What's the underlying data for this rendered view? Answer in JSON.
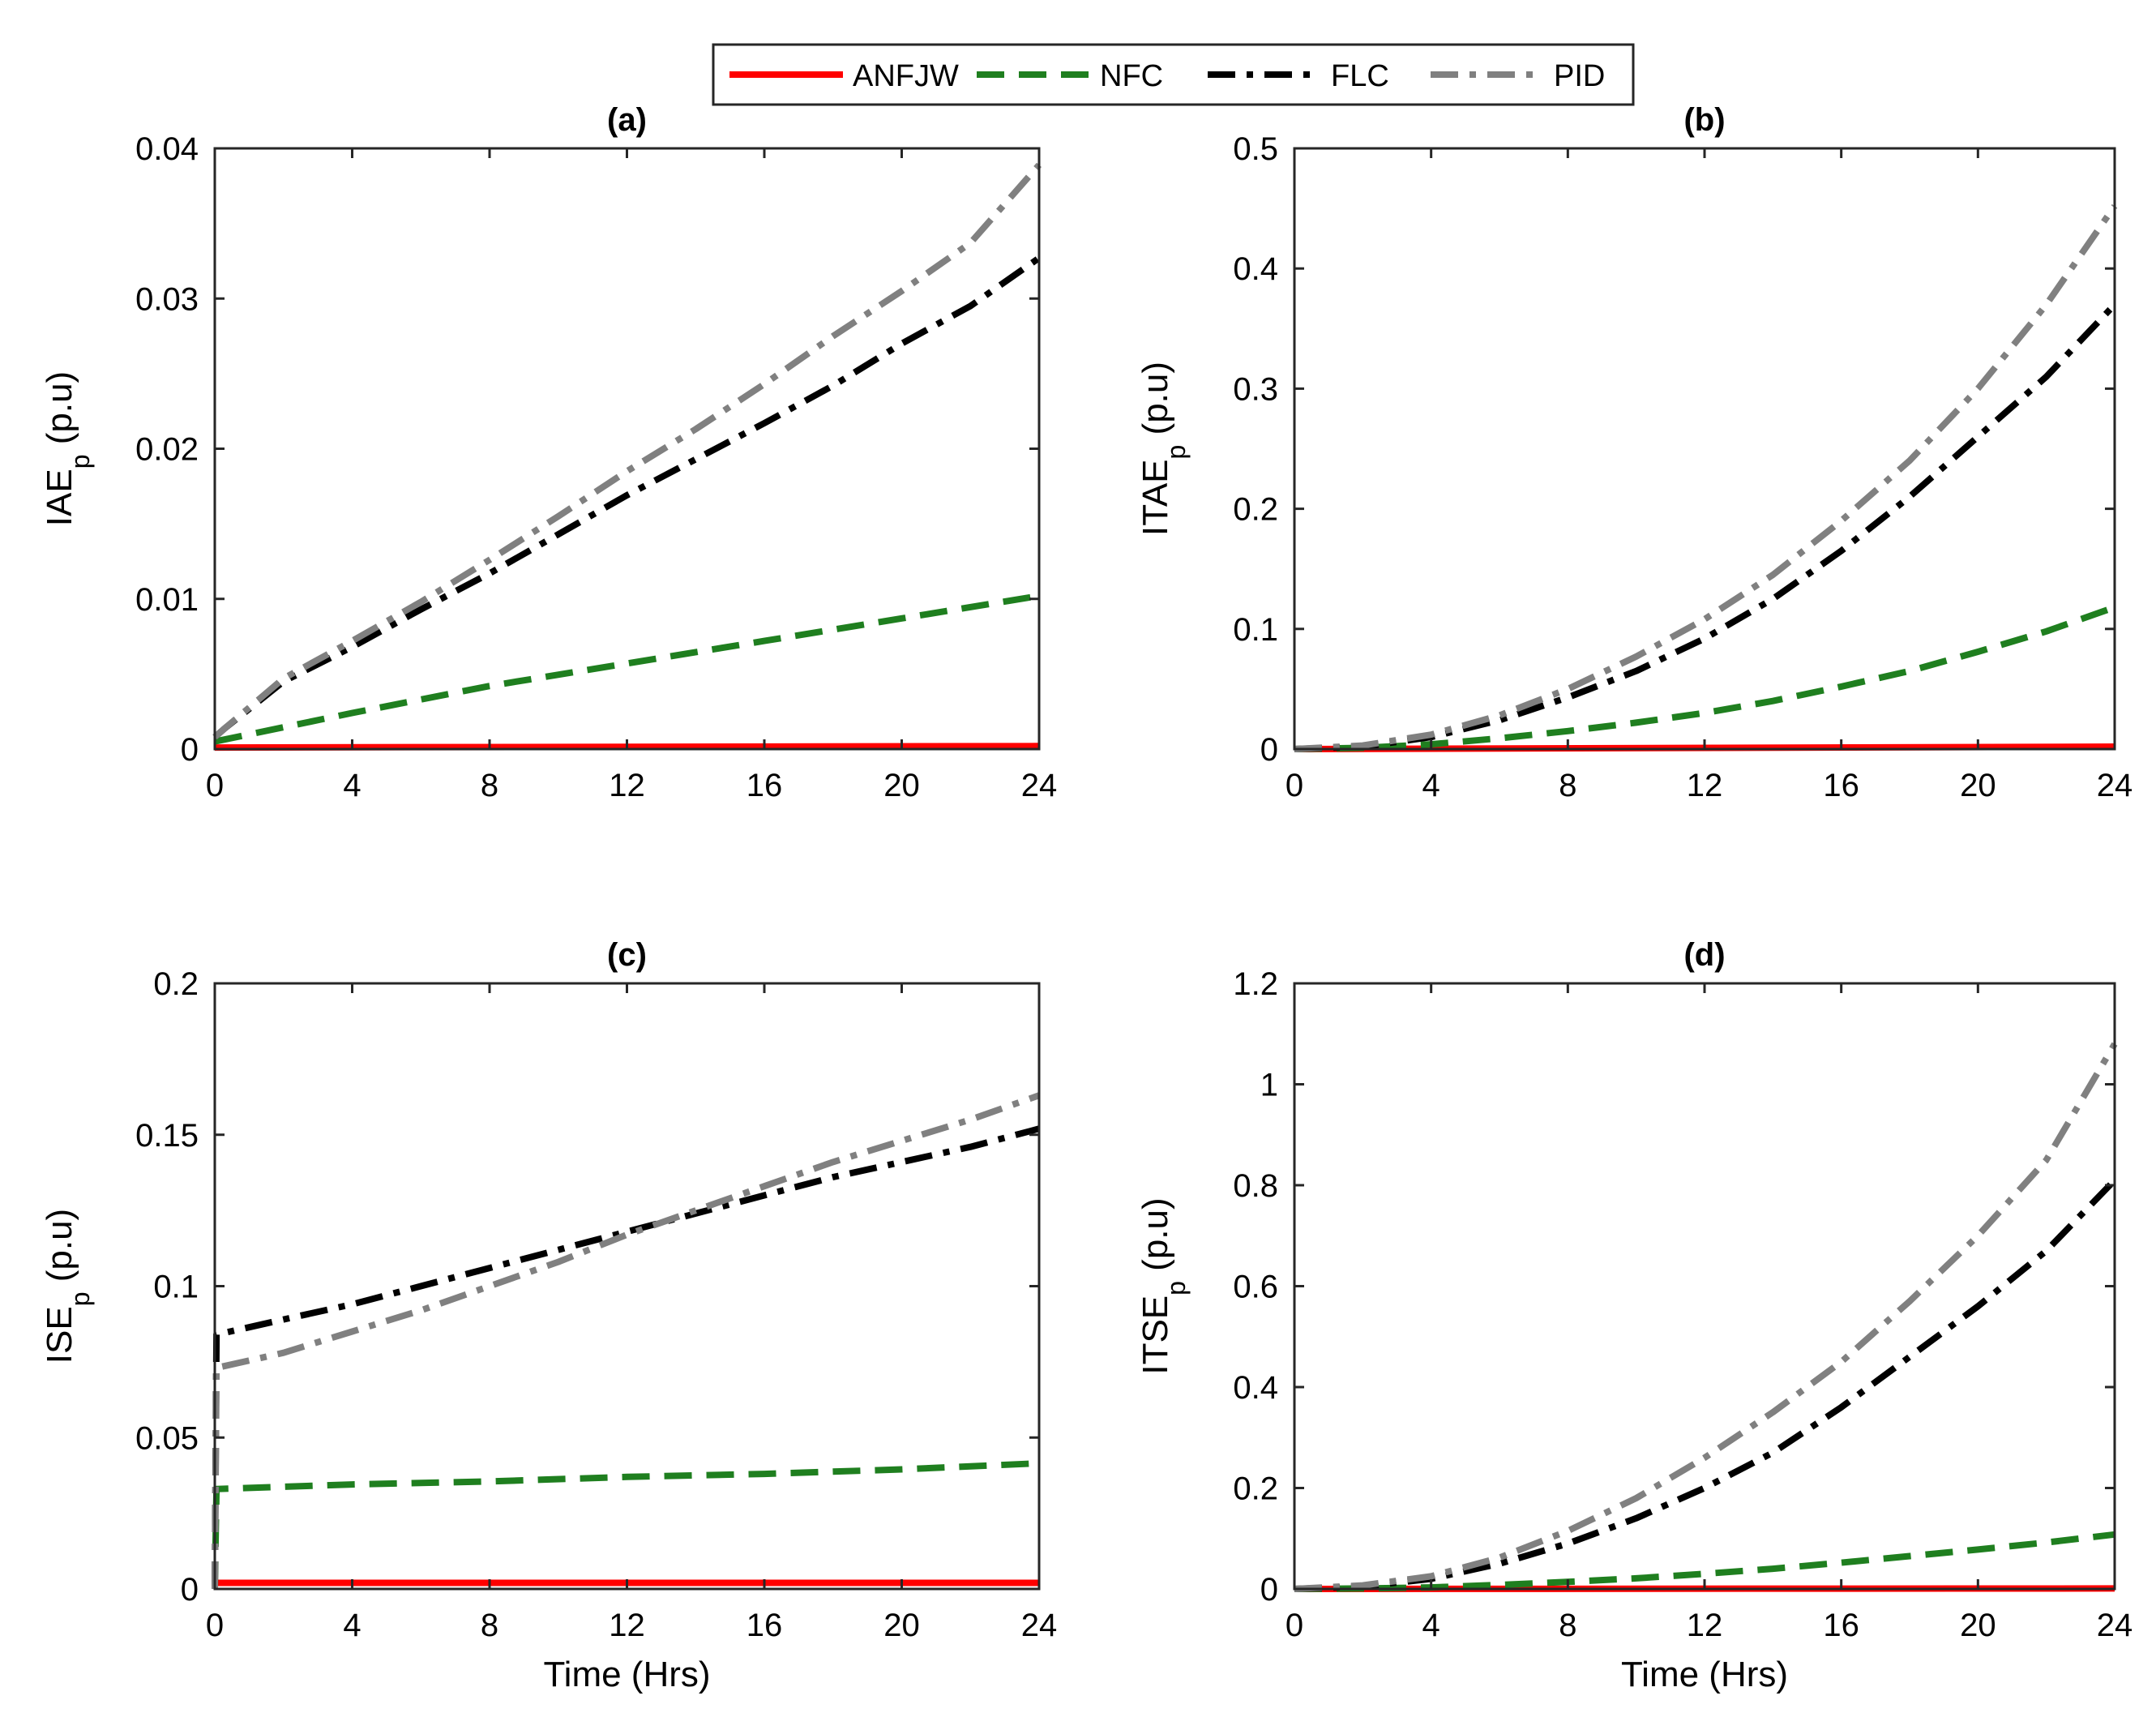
{
  "legend": {
    "entries": [
      {
        "label": "ANFJW",
        "color": "#ff0000",
        "dash": "solid"
      },
      {
        "label": "NFC",
        "color": "#1f7f1f",
        "dash": "dash"
      },
      {
        "label": "FLC",
        "color": "#000000",
        "dash": "dashdot"
      },
      {
        "label": "PID",
        "color": "#808080",
        "dash": "dashdot"
      }
    ]
  },
  "chart_data": [
    {
      "type": "line",
      "title": "(a)",
      "ylabel_main": "IAE",
      "ylabel_sub": "p",
      "ylabel_unit": " (p.u)",
      "xlabel": "",
      "xlim": [
        0,
        24
      ],
      "ylim": [
        0,
        0.04
      ],
      "xticks": [
        0,
        4,
        8,
        12,
        16,
        20,
        24
      ],
      "yticks": [
        0,
        0.01,
        0.02,
        0.03,
        0.04
      ],
      "ytick_labels": [
        "0",
        "0.01",
        "0.02",
        "0.03",
        "0.04"
      ],
      "series": [
        {
          "name": "ANFJW",
          "x": [
            0,
            24
          ],
          "y": [
            0.0001,
            0.0002
          ]
        },
        {
          "name": "NFC",
          "x": [
            0,
            4,
            8,
            12,
            16,
            20,
            24
          ],
          "y": [
            0.0005,
            0.0024,
            0.0042,
            0.0057,
            0.0072,
            0.0087,
            0.0102
          ]
        },
        {
          "name": "FLC",
          "x": [
            0,
            0.3,
            2,
            4,
            6,
            8,
            10,
            12,
            14,
            16,
            18,
            20,
            22,
            24
          ],
          "y": [
            0.0008,
            0.0014,
            0.0045,
            0.0068,
            0.0093,
            0.0117,
            0.0143,
            0.0169,
            0.0193,
            0.0217,
            0.0242,
            0.027,
            0.0295,
            0.0327
          ]
        },
        {
          "name": "PID",
          "x": [
            0,
            0.3,
            2,
            4,
            6,
            8,
            10,
            12,
            14,
            16,
            18,
            20,
            22,
            24
          ],
          "y": [
            0.0008,
            0.0014,
            0.0047,
            0.0072,
            0.0098,
            0.0126,
            0.0155,
            0.0185,
            0.0213,
            0.0243,
            0.0275,
            0.0305,
            0.0337,
            0.0389
          ]
        }
      ]
    },
    {
      "type": "line",
      "title": "(b)",
      "ylabel_main": "ITAE",
      "ylabel_sub": "p",
      "ylabel_unit": " (p.u)",
      "xlabel": "",
      "xlim": [
        0,
        24
      ],
      "ylim": [
        0,
        0.5
      ],
      "xticks": [
        0,
        4,
        8,
        12,
        16,
        20,
        24
      ],
      "yticks": [
        0,
        0.1,
        0.2,
        0.3,
        0.4,
        0.5
      ],
      "ytick_labels": [
        "0",
        "0.1",
        "0.2",
        "0.3",
        "0.4",
        "0.5"
      ],
      "series": [
        {
          "name": "ANFJW",
          "x": [
            0,
            24
          ],
          "y": [
            0.0,
            0.002
          ]
        },
        {
          "name": "NFC",
          "x": [
            0,
            2,
            4,
            6,
            8,
            10,
            12,
            14,
            16,
            18,
            20,
            22,
            24
          ],
          "y": [
            0,
            0.001,
            0.004,
            0.009,
            0.015,
            0.022,
            0.03,
            0.04,
            0.052,
            0.065,
            0.081,
            0.098,
            0.118
          ]
        },
        {
          "name": "FLC",
          "x": [
            0,
            2,
            4,
            6,
            8,
            10,
            12,
            14,
            16,
            18,
            20,
            22,
            24
          ],
          "y": [
            0,
            0.002,
            0.01,
            0.024,
            0.043,
            0.065,
            0.092,
            0.125,
            0.165,
            0.21,
            0.26,
            0.31,
            0.37
          ]
        },
        {
          "name": "PID",
          "x": [
            0,
            2,
            4,
            6,
            8,
            10,
            12,
            14,
            16,
            18,
            20,
            22,
            24
          ],
          "y": [
            0,
            0.003,
            0.012,
            0.028,
            0.05,
            0.077,
            0.108,
            0.145,
            0.19,
            0.24,
            0.3,
            0.37,
            0.452
          ]
        }
      ]
    },
    {
      "type": "line",
      "title": "(c)",
      "ylabel_main": "ISE",
      "ylabel_sub": "p",
      "ylabel_unit": " (p.u)",
      "xlabel": "Time (Hrs)",
      "xlim": [
        0,
        24
      ],
      "ylim": [
        0,
        0.2
      ],
      "xticks": [
        0,
        4,
        8,
        12,
        16,
        20,
        24
      ],
      "yticks": [
        0,
        0.05,
        0.1,
        0.15,
        0.2
      ],
      "ytick_labels": [
        "0",
        "0.05",
        "0.1",
        "0.15",
        "0.2"
      ],
      "series": [
        {
          "name": "ANFJW",
          "x": [
            0,
            24
          ],
          "y": [
            0.002,
            0.002
          ]
        },
        {
          "name": "NFC",
          "x": [
            0,
            0.05,
            4,
            8,
            12,
            16,
            20,
            24
          ],
          "y": [
            0,
            0.033,
            0.0345,
            0.0355,
            0.037,
            0.038,
            0.0395,
            0.0415
          ]
        },
        {
          "name": "FLC",
          "x": [
            0,
            0.05,
            2,
            4,
            6,
            8,
            10,
            12,
            14,
            16,
            18,
            20,
            22,
            24
          ],
          "y": [
            0,
            0.084,
            0.089,
            0.094,
            0.1,
            0.106,
            0.112,
            0.118,
            0.124,
            0.13,
            0.136,
            0.141,
            0.146,
            0.152
          ]
        },
        {
          "name": "PID",
          "x": [
            0,
            0.05,
            2,
            4,
            6,
            8,
            10,
            12,
            14,
            16,
            18,
            20,
            22,
            24
          ],
          "y": [
            0,
            0.073,
            0.078,
            0.085,
            0.092,
            0.1,
            0.108,
            0.117,
            0.125,
            0.133,
            0.141,
            0.148,
            0.155,
            0.163
          ]
        }
      ]
    },
    {
      "type": "line",
      "title": "(d)",
      "ylabel_main": "ITSE",
      "ylabel_sub": "p",
      "ylabel_unit": " (p.u)",
      "xlabel": "Time (Hrs)",
      "xlim": [
        0,
        24
      ],
      "ylim": [
        0,
        1.2
      ],
      "xticks": [
        0,
        4,
        8,
        12,
        16,
        20,
        24
      ],
      "yticks": [
        0,
        0.2,
        0.4,
        0.6,
        0.8,
        1,
        1.2
      ],
      "ytick_labels": [
        "0",
        "0.2",
        "0.4",
        "0.6",
        "0.8",
        "1",
        "1.2"
      ],
      "series": [
        {
          "name": "ANFJW",
          "x": [
            0,
            24
          ],
          "y": [
            0.0,
            0.001
          ]
        },
        {
          "name": "NFC",
          "x": [
            0,
            2,
            4,
            6,
            8,
            10,
            12,
            14,
            16,
            18,
            20,
            22,
            24
          ],
          "y": [
            0,
            0.001,
            0.003,
            0.008,
            0.014,
            0.021,
            0.03,
            0.04,
            0.052,
            0.065,
            0.078,
            0.092,
            0.108
          ]
        },
        {
          "name": "FLC",
          "x": [
            0,
            2,
            4,
            6,
            8,
            10,
            12,
            14,
            16,
            18,
            20,
            22,
            24
          ],
          "y": [
            0,
            0.005,
            0.02,
            0.05,
            0.09,
            0.14,
            0.2,
            0.27,
            0.36,
            0.46,
            0.56,
            0.67,
            0.81
          ]
        },
        {
          "name": "PID",
          "x": [
            0,
            2,
            4,
            6,
            8,
            10,
            12,
            14,
            16,
            18,
            20,
            22,
            24
          ],
          "y": [
            0,
            0.007,
            0.025,
            0.062,
            0.115,
            0.18,
            0.26,
            0.35,
            0.45,
            0.57,
            0.7,
            0.85,
            1.08
          ]
        }
      ]
    }
  ]
}
